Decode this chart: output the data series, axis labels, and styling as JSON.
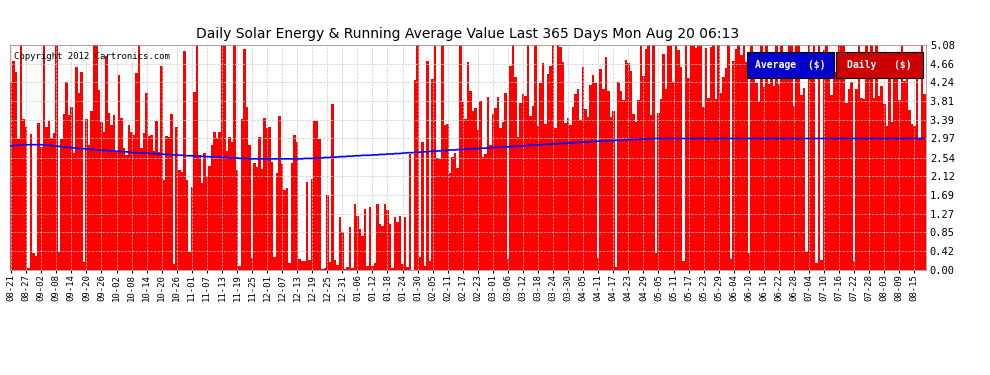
{
  "title": "Daily Solar Energy & Running Average Value Last 365 Days Mon Aug 20 06:13",
  "copyright": "Copyright 2012 Cartronics.com",
  "bar_color": "#FF0000",
  "avg_line_color": "#0000FF",
  "background_color": "#FFFFFF",
  "plot_bg_color": "#FFFFFF",
  "grid_color": "#AAAAAA",
  "ylim": [
    0.0,
    5.08
  ],
  "yticks": [
    0.0,
    0.42,
    0.85,
    1.27,
    1.69,
    2.12,
    2.54,
    2.97,
    3.39,
    3.81,
    4.24,
    4.66,
    5.08
  ],
  "n_bars": 365,
  "legend_avg_color": "#0000CC",
  "legend_daily_color": "#CC0000",
  "legend_avg_text": "Average  ($)",
  "legend_daily_text": "Daily   ($)",
  "xtick_labels": [
    "08-21",
    "08-27",
    "09-02",
    "09-08",
    "09-14",
    "09-20",
    "09-26",
    "10-02",
    "10-08",
    "10-14",
    "10-20",
    "10-26",
    "11-01",
    "11-07",
    "11-13",
    "11-19",
    "11-25",
    "12-01",
    "12-07",
    "12-13",
    "12-19",
    "12-25",
    "12-31",
    "01-06",
    "01-12",
    "01-18",
    "01-24",
    "01-30",
    "02-05",
    "02-11",
    "02-17",
    "02-23",
    "03-01",
    "03-06",
    "03-12",
    "03-18",
    "03-24",
    "03-30",
    "04-05",
    "04-11",
    "04-17",
    "04-23",
    "04-29",
    "05-05",
    "05-11",
    "05-17",
    "05-23",
    "05-29",
    "06-04",
    "06-10",
    "06-16",
    "06-22",
    "06-28",
    "07-04",
    "07-10",
    "07-16",
    "07-22",
    "07-28",
    "08-03",
    "08-09",
    "08-15"
  ],
  "avg_line_values": [
    2.8,
    2.81,
    2.81,
    2.82,
    2.82,
    2.83,
    2.83,
    2.83,
    2.83,
    2.83,
    2.83,
    2.83,
    2.83,
    2.82,
    2.82,
    2.82,
    2.81,
    2.8,
    2.8,
    2.79,
    2.79,
    2.78,
    2.77,
    2.77,
    2.76,
    2.76,
    2.75,
    2.75,
    2.74,
    2.74,
    2.73,
    2.73,
    2.72,
    2.72,
    2.71,
    2.71,
    2.7,
    2.7,
    2.7,
    2.69,
    2.69,
    2.69,
    2.68,
    2.68,
    2.67,
    2.67,
    2.67,
    2.66,
    2.66,
    2.65,
    2.65,
    2.65,
    2.64,
    2.64,
    2.64,
    2.63,
    2.63,
    2.63,
    2.62,
    2.62,
    2.62,
    2.61,
    2.61,
    2.61,
    2.6,
    2.6,
    2.6,
    2.59,
    2.59,
    2.59,
    2.58,
    2.58,
    2.58,
    2.57,
    2.57,
    2.57,
    2.57,
    2.56,
    2.56,
    2.56,
    2.55,
    2.55,
    2.55,
    2.55,
    2.54,
    2.54,
    2.54,
    2.53,
    2.53,
    2.53,
    2.53,
    2.52,
    2.52,
    2.52,
    2.52,
    2.51,
    2.51,
    2.51,
    2.51,
    2.51,
    2.51,
    2.51,
    2.51,
    2.51,
    2.51,
    2.51,
    2.51,
    2.51,
    2.51,
    2.51,
    2.51,
    2.51,
    2.51,
    2.51,
    2.51,
    2.51,
    2.51,
    2.52,
    2.52,
    2.52,
    2.52,
    2.52,
    2.53,
    2.53,
    2.53,
    2.54,
    2.54,
    2.54,
    2.55,
    2.55,
    2.55,
    2.56,
    2.56,
    2.56,
    2.57,
    2.57,
    2.57,
    2.58,
    2.58,
    2.58,
    2.59,
    2.59,
    2.59,
    2.59,
    2.6,
    2.6,
    2.6,
    2.61,
    2.61,
    2.61,
    2.62,
    2.62,
    2.62,
    2.63,
    2.63,
    2.63,
    2.64,
    2.64,
    2.65,
    2.65,
    2.65,
    2.66,
    2.66,
    2.66,
    2.67,
    2.67,
    2.67,
    2.68,
    2.68,
    2.68,
    2.69,
    2.69,
    2.7,
    2.7,
    2.7,
    2.71,
    2.71,
    2.71,
    2.72,
    2.72,
    2.72,
    2.73,
    2.73,
    2.73,
    2.74,
    2.74,
    2.74,
    2.75,
    2.75,
    2.75,
    2.76,
    2.76,
    2.76,
    2.77,
    2.77,
    2.77,
    2.78,
    2.78,
    2.78,
    2.79,
    2.79,
    2.79,
    2.8,
    2.8,
    2.8,
    2.81,
    2.81,
    2.82,
    2.82,
    2.82,
    2.83,
    2.83,
    2.83,
    2.84,
    2.84,
    2.84,
    2.85,
    2.85,
    2.85,
    2.86,
    2.86,
    2.86,
    2.87,
    2.87,
    2.87,
    2.88,
    2.88,
    2.88,
    2.89,
    2.89,
    2.89,
    2.9,
    2.9,
    2.9,
    2.91,
    2.91,
    2.91,
    2.91,
    2.92,
    2.92,
    2.92,
    2.93,
    2.93,
    2.93,
    2.94,
    2.94,
    2.94,
    2.95,
    2.95,
    2.95,
    2.95,
    2.96,
    2.96,
    2.96,
    2.96,
    2.97,
    2.97,
    2.97,
    2.97,
    2.97,
    2.97,
    2.97,
    2.97,
    2.97,
    2.97,
    2.97,
    2.97,
    2.97,
    2.97,
    2.97,
    2.97,
    2.97,
    2.97,
    2.97,
    2.97,
    2.97,
    2.97,
    2.97,
    2.97,
    2.97,
    2.97,
    2.97,
    2.97,
    2.97,
    2.97,
    2.97,
    2.97,
    2.97,
    2.97,
    2.97,
    2.97,
    2.97,
    2.97,
    2.97,
    2.97,
    2.97,
    2.97,
    2.97,
    2.97,
    2.97,
    2.97,
    2.97,
    2.97,
    2.97,
    2.97,
    2.97,
    2.97,
    2.97,
    2.97,
    2.97,
    2.97,
    2.97,
    2.97,
    2.97,
    2.97,
    2.97,
    2.97,
    2.97,
    2.97,
    2.97,
    2.97,
    2.97,
    2.97,
    2.97,
    2.97,
    2.97,
    2.97,
    2.97,
    2.97,
    2.97,
    2.97,
    2.97,
    2.97,
    2.97,
    2.97,
    2.97,
    2.97,
    2.97,
    2.97,
    2.97,
    2.97,
    2.97,
    2.97,
    2.97,
    2.97,
    2.97,
    2.97,
    2.97,
    2.97,
    2.97,
    2.97,
    2.97,
    2.97,
    2.97,
    2.97,
    2.97,
    2.97,
    2.97,
    2.97,
    2.97,
    2.97,
    2.97,
    2.97,
    2.97,
    2.97
  ]
}
